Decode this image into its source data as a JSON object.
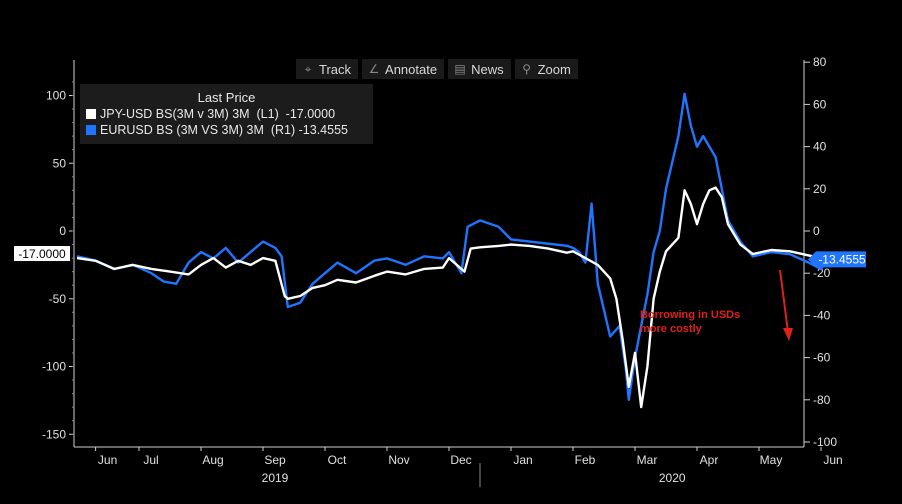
{
  "toolbar": {
    "items": [
      {
        "label": "Track",
        "icon": "crosshair-icon",
        "glyph": "⌖"
      },
      {
        "label": "Annotate",
        "icon": "pencil-icon",
        "glyph": "∠"
      },
      {
        "label": "News",
        "icon": "news-icon",
        "glyph": "▤"
      },
      {
        "label": "Zoom",
        "icon": "magnifier-icon",
        "glyph": "⚲"
      }
    ]
  },
  "legend": {
    "title": "Last Price",
    "entries": [
      {
        "label": "JPY-USD BS(3M v 3M) 3M  (L1)  -17.0000",
        "color": "#ffffff"
      },
      {
        "label": "EURUSD BS (3M VS 3M) 3M  (R1) -13.4555",
        "color": "#1f75fe"
      }
    ]
  },
  "annotation": {
    "line1": "Borrowing in USDs",
    "line2": "more costly",
    "color": "#e0201c"
  },
  "chart_data": {
    "type": "line",
    "x_axis": {
      "months": [
        "Jun",
        "Jul",
        "Aug",
        "Sep",
        "Oct",
        "Nov",
        "Dec",
        "Jan",
        "Feb",
        "Mar",
        "Apr",
        "May",
        "Jun"
      ],
      "month_positions": [
        0.3,
        1,
        2,
        3,
        4,
        5,
        6,
        7,
        8,
        9,
        10,
        11,
        12
      ],
      "years": [
        "2019",
        "2020"
      ]
    },
    "left_axis": {
      "ticks": [
        100,
        50,
        0,
        -50,
        -100,
        -150
      ],
      "labels": [
        "100",
        "50",
        "0",
        "-50",
        "-100",
        "-150"
      ],
      "range": [
        -155,
        125
      ]
    },
    "right_axis": {
      "ticks": [
        80,
        60,
        40,
        20,
        0,
        -20,
        -40,
        -60,
        -80,
        -100
      ],
      "labels": [
        "80",
        "60",
        "40",
        "20",
        "0",
        "-20",
        "-40",
        "-60",
        "-80",
        "-100"
      ],
      "range": [
        -103,
        78
      ]
    },
    "last_values": {
      "left": "-17.0000",
      "right": "-13.4555"
    },
    "series": [
      {
        "name": "JPY-USD BS(3M v 3M) 3M",
        "axis": "left",
        "color": "#ffffff",
        "points": [
          [
            0,
            -20
          ],
          [
            0.3,
            -22
          ],
          [
            0.6,
            -28
          ],
          [
            0.9,
            -25
          ],
          [
            1.2,
            -28
          ],
          [
            1.5,
            -30
          ],
          [
            1.8,
            -32
          ],
          [
            2.0,
            -25
          ],
          [
            2.2,
            -20
          ],
          [
            2.4,
            -27
          ],
          [
            2.6,
            -22
          ],
          [
            2.8,
            -25
          ],
          [
            3.0,
            -20
          ],
          [
            3.2,
            -22
          ],
          [
            3.35,
            -48
          ],
          [
            3.4,
            -50
          ],
          [
            3.6,
            -48
          ],
          [
            3.8,
            -42
          ],
          [
            4.0,
            -40
          ],
          [
            4.2,
            -36
          ],
          [
            4.5,
            -38
          ],
          [
            4.8,
            -33
          ],
          [
            5.0,
            -30
          ],
          [
            5.3,
            -32
          ],
          [
            5.6,
            -28
          ],
          [
            5.9,
            -27
          ],
          [
            6.0,
            -20
          ],
          [
            6.25,
            -30
          ],
          [
            6.35,
            -13
          ],
          [
            6.5,
            -12
          ],
          [
            6.8,
            -11
          ],
          [
            7.0,
            -10
          ],
          [
            7.3,
            -11
          ],
          [
            7.6,
            -13
          ],
          [
            7.9,
            -16
          ],
          [
            8.0,
            -15
          ],
          [
            8.2,
            -20
          ],
          [
            8.4,
            -25
          ],
          [
            8.6,
            -35
          ],
          [
            8.7,
            -50
          ],
          [
            8.8,
            -80
          ],
          [
            8.9,
            -115
          ],
          [
            9.0,
            -90
          ],
          [
            9.1,
            -130
          ],
          [
            9.2,
            -100
          ],
          [
            9.3,
            -50
          ],
          [
            9.4,
            -30
          ],
          [
            9.5,
            -15
          ],
          [
            9.7,
            -5
          ],
          [
            9.8,
            30
          ],
          [
            9.9,
            20
          ],
          [
            10.0,
            5
          ],
          [
            10.1,
            20
          ],
          [
            10.2,
            30
          ],
          [
            10.3,
            32
          ],
          [
            10.4,
            25
          ],
          [
            10.5,
            5
          ],
          [
            10.7,
            -10
          ],
          [
            10.9,
            -17
          ],
          [
            11.2,
            -14
          ],
          [
            11.5,
            -15
          ],
          [
            11.8,
            -18
          ],
          [
            12.0,
            -20
          ],
          [
            12.2,
            -23
          ],
          [
            12.35,
            -17
          ]
        ]
      },
      {
        "name": "EURUSD BS (3M VS 3M) 3M",
        "axis": "right",
        "color": "#1f75fe",
        "points": [
          [
            0,
            -12
          ],
          [
            0.3,
            -14
          ],
          [
            0.6,
            -18
          ],
          [
            0.9,
            -16
          ],
          [
            1.2,
            -20
          ],
          [
            1.4,
            -24
          ],
          [
            1.6,
            -25
          ],
          [
            1.8,
            -15
          ],
          [
            2.0,
            -10
          ],
          [
            2.2,
            -13
          ],
          [
            2.4,
            -8
          ],
          [
            2.6,
            -15
          ],
          [
            2.8,
            -10
          ],
          [
            3.0,
            -5
          ],
          [
            3.2,
            -8
          ],
          [
            3.3,
            -12
          ],
          [
            3.4,
            -36
          ],
          [
            3.6,
            -34
          ],
          [
            3.8,
            -25
          ],
          [
            4.0,
            -20
          ],
          [
            4.2,
            -15
          ],
          [
            4.5,
            -20
          ],
          [
            4.8,
            -14
          ],
          [
            5.0,
            -13
          ],
          [
            5.3,
            -16
          ],
          [
            5.6,
            -12
          ],
          [
            5.9,
            -13
          ],
          [
            6.0,
            -10
          ],
          [
            6.2,
            -20
          ],
          [
            6.3,
            2
          ],
          [
            6.5,
            5
          ],
          [
            6.8,
            2
          ],
          [
            7.0,
            -4
          ],
          [
            7.3,
            -5
          ],
          [
            7.6,
            -6
          ],
          [
            7.9,
            -7
          ],
          [
            8.0,
            -8
          ],
          [
            8.1,
            -10
          ],
          [
            8.2,
            -15
          ],
          [
            8.3,
            13
          ],
          [
            8.4,
            -25
          ],
          [
            8.6,
            -50
          ],
          [
            8.75,
            -45
          ],
          [
            8.85,
            -65
          ],
          [
            8.9,
            -80
          ],
          [
            9.0,
            -60
          ],
          [
            9.1,
            -45
          ],
          [
            9.2,
            -30
          ],
          [
            9.3,
            -10
          ],
          [
            9.4,
            0
          ],
          [
            9.5,
            20
          ],
          [
            9.7,
            45
          ],
          [
            9.8,
            65
          ],
          [
            9.9,
            50
          ],
          [
            10.0,
            40
          ],
          [
            10.1,
            45
          ],
          [
            10.2,
            40
          ],
          [
            10.3,
            35
          ],
          [
            10.4,
            20
          ],
          [
            10.5,
            5
          ],
          [
            10.7,
            -5
          ],
          [
            10.9,
            -12
          ],
          [
            11.2,
            -10
          ],
          [
            11.5,
            -11
          ],
          [
            11.8,
            -15
          ],
          [
            12.0,
            -18
          ],
          [
            12.1,
            -13
          ],
          [
            12.35,
            -13.5
          ]
        ]
      }
    ]
  }
}
